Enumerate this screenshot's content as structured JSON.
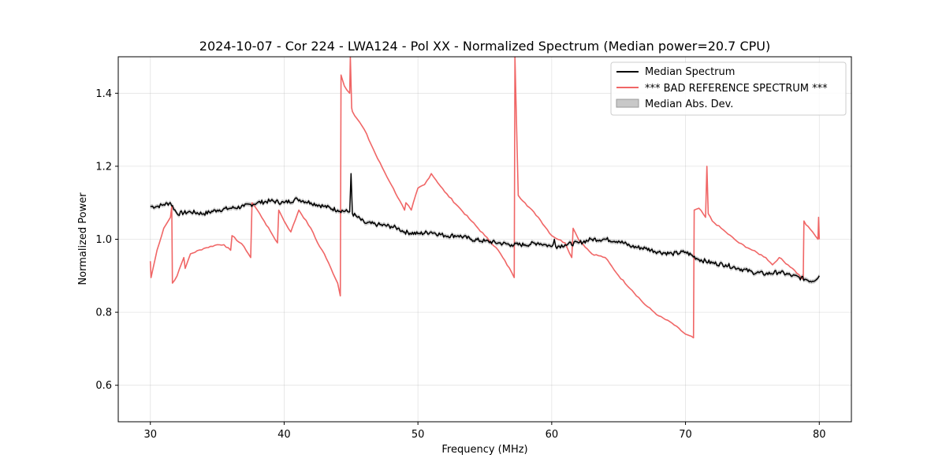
{
  "chart_data": {
    "type": "line",
    "title": "2024-10-07 - Cor 224 - LWA124 - Pol XX - Normalized Spectrum (Median power=20.7 CPU)",
    "xlabel": "Frequency (MHz)",
    "ylabel": "Normalized Power",
    "xlim": [
      27.6,
      82.4
    ],
    "ylim": [
      0.5,
      1.5
    ],
    "xticks": [
      30,
      40,
      50,
      60,
      70,
      80
    ],
    "yticks": [
      0.6,
      0.8,
      1.0,
      1.2,
      1.4
    ],
    "xtick_labels": [
      "30",
      "40",
      "50",
      "60",
      "70",
      "80"
    ],
    "ytick_labels": [
      "0.6",
      "0.8",
      "1.0",
      "1.2",
      "1.4"
    ],
    "grid": true,
    "legend_position": "top-right",
    "legend": [
      {
        "label": "Median Spectrum",
        "kind": "line",
        "color": "#000000"
      },
      {
        "label": "*** BAD REFERENCE SPECTRUM ***",
        "kind": "line",
        "color": "#f06666"
      },
      {
        "label": "Median Abs. Dev.",
        "kind": "band",
        "color": "#bdbdbd"
      }
    ],
    "series": [
      {
        "name": "Median Spectrum",
        "color": "#000000",
        "x": [
          30,
          30.5,
          31,
          31.5,
          32,
          33,
          34,
          35,
          36,
          37,
          38,
          39,
          40,
          41,
          42,
          43,
          44,
          44.9,
          45,
          45.1,
          45.5,
          46,
          47,
          48,
          48.5,
          49,
          50,
          51,
          52,
          53,
          54,
          55,
          56,
          57,
          58,
          59,
          59.5,
          60,
          60.2,
          60.3,
          61,
          62,
          63,
          64,
          65,
          66,
          67,
          68,
          69,
          70,
          71,
          72,
          73,
          74,
          75,
          76,
          77,
          78,
          79,
          79.5,
          80
        ],
        "values": [
          1.09,
          1.09,
          1.095,
          1.1,
          1.07,
          1.075,
          1.07,
          1.08,
          1.085,
          1.09,
          1.1,
          1.105,
          1.1,
          1.11,
          1.1,
          1.09,
          1.08,
          1.075,
          1.18,
          1.07,
          1.06,
          1.045,
          1.04,
          1.035,
          1.03,
          1.02,
          1.015,
          1.02,
          1.01,
          1.01,
          1.0,
          0.995,
          0.99,
          0.985,
          0.985,
          0.99,
          0.985,
          0.98,
          1.0,
          0.98,
          0.985,
          0.99,
          1.0,
          1.0,
          0.995,
          0.98,
          0.975,
          0.965,
          0.96,
          0.965,
          0.945,
          0.935,
          0.93,
          0.92,
          0.91,
          0.905,
          0.91,
          0.9,
          0.89,
          0.885,
          0.9
        ]
      },
      {
        "name": "*** BAD REFERENCE SPECTRUM ***",
        "color": "#f06666",
        "x": [
          30,
          30.05,
          30.5,
          31,
          31.5,
          31.6,
          31.65,
          32,
          32.5,
          32.6,
          32.8,
          33,
          34,
          35,
          35.5,
          36,
          36.1,
          37,
          37.5,
          37.6,
          38,
          38.5,
          39,
          39.5,
          39.6,
          40,
          40.5,
          41,
          41.1,
          42,
          42.5,
          43,
          44,
          44.2,
          44.25,
          44.5,
          44.9,
          44.95,
          45.05,
          45.1,
          46,
          47,
          48,
          49,
          49.1,
          49.5,
          50,
          50.5,
          51,
          52,
          53,
          54,
          55,
          56,
          57,
          57.2,
          57.25,
          57.5,
          58,
          59,
          60,
          61,
          61.5,
          61.6,
          62,
          63,
          64,
          65,
          66,
          67,
          68,
          69,
          70,
          70.6,
          70.65,
          71,
          71.5,
          71.6,
          71.7,
          72,
          73,
          74,
          75,
          76,
          76.5,
          77,
          78,
          78.8,
          78.85,
          79,
          79.5,
          79.9,
          79.95,
          80
        ],
        "values": [
          0.94,
          0.895,
          0.97,
          1.03,
          1.06,
          1.09,
          0.88,
          0.9,
          0.95,
          0.92,
          0.94,
          0.96,
          0.975,
          0.985,
          0.985,
          0.97,
          1.01,
          0.98,
          0.95,
          1.1,
          1.08,
          1.05,
          1.02,
          0.99,
          1.08,
          1.05,
          1.02,
          1.07,
          1.08,
          1.03,
          0.99,
          0.96,
          0.88,
          0.845,
          1.45,
          1.42,
          1.4,
          1.5,
          1.36,
          1.35,
          1.3,
          1.22,
          1.15,
          1.08,
          1.1,
          1.08,
          1.14,
          1.15,
          1.18,
          1.13,
          1.09,
          1.05,
          1.01,
          0.97,
          0.91,
          0.895,
          1.5,
          1.12,
          1.1,
          1.06,
          1.01,
          0.99,
          0.95,
          1.03,
          1.0,
          0.96,
          0.95,
          0.9,
          0.86,
          0.82,
          0.79,
          0.77,
          0.74,
          0.73,
          1.08,
          1.085,
          1.06,
          1.2,
          1.07,
          1.05,
          1.02,
          0.99,
          0.97,
          0.95,
          0.93,
          0.95,
          0.92,
          0.89,
          1.05,
          1.04,
          1.02,
          1.0,
          1.06,
          1.0
        ]
      }
    ]
  }
}
